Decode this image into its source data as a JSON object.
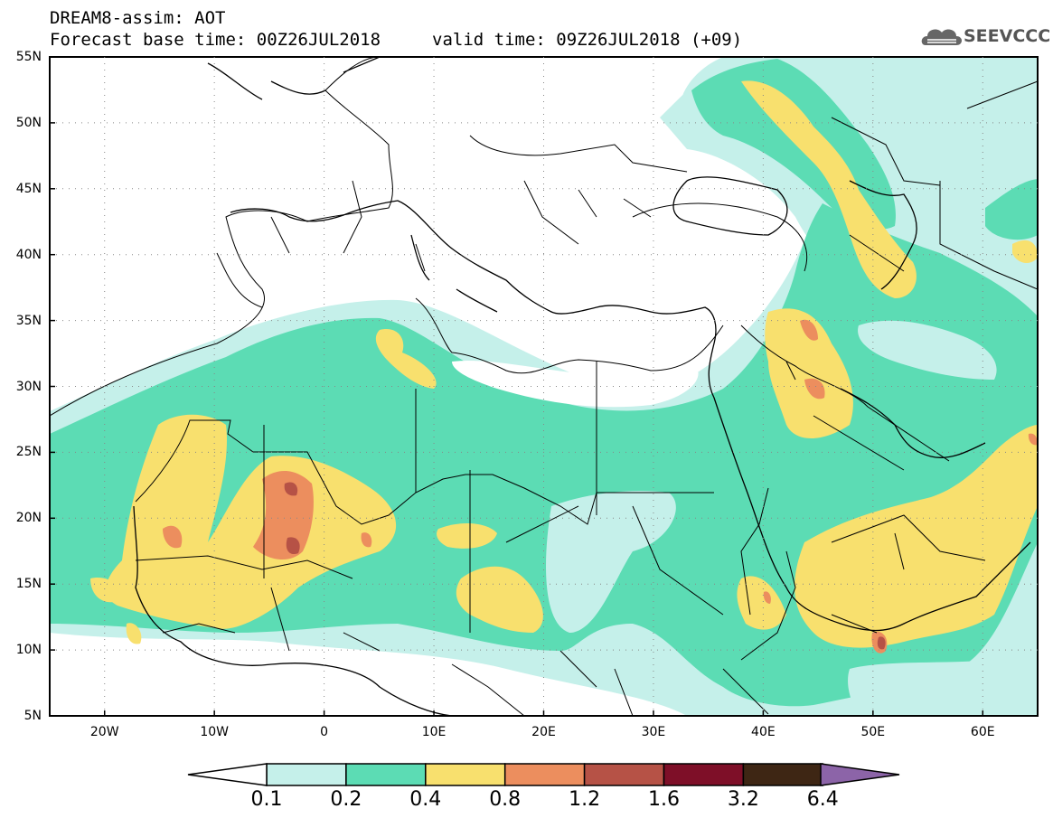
{
  "header": {
    "title_line1": "DREAM8-assim: AOT",
    "title_line2": "Forecast base time: 00Z26JUL2018",
    "valid_time": "valid time: 09Z26JUL2018 (+09)",
    "logo_text": "SEEVCCC"
  },
  "map": {
    "lat_labels": [
      "55N",
      "50N",
      "45N",
      "40N",
      "35N",
      "30N",
      "25N",
      "20N",
      "15N",
      "10N",
      "5N"
    ],
    "lon_labels": [
      "20W",
      "10W",
      "0",
      "10E",
      "20E",
      "30E",
      "40E",
      "50E",
      "60E"
    ],
    "extent": {
      "lon_min": -25,
      "lon_max": 65,
      "lat_min": 5,
      "lat_max": 55
    }
  },
  "colorbar": {
    "labels": [
      "0.1",
      "0.2",
      "0.4",
      "0.8",
      "1.2",
      "1.6",
      "3.2",
      "6.4"
    ],
    "colors": [
      "#c5f0ea",
      "#5cdcb4",
      "#f8e06e",
      "#ec8e5e",
      "#b65246",
      "#7e0f28",
      "#3e2614",
      "#8c64a8"
    ]
  },
  "colors": {
    "c1": "#c5f0ea",
    "c2": "#5cdcb4",
    "c3": "#f8e06e",
    "c4": "#ec8e5e",
    "c5": "#b65246",
    "c6": "#7e0f28"
  }
}
